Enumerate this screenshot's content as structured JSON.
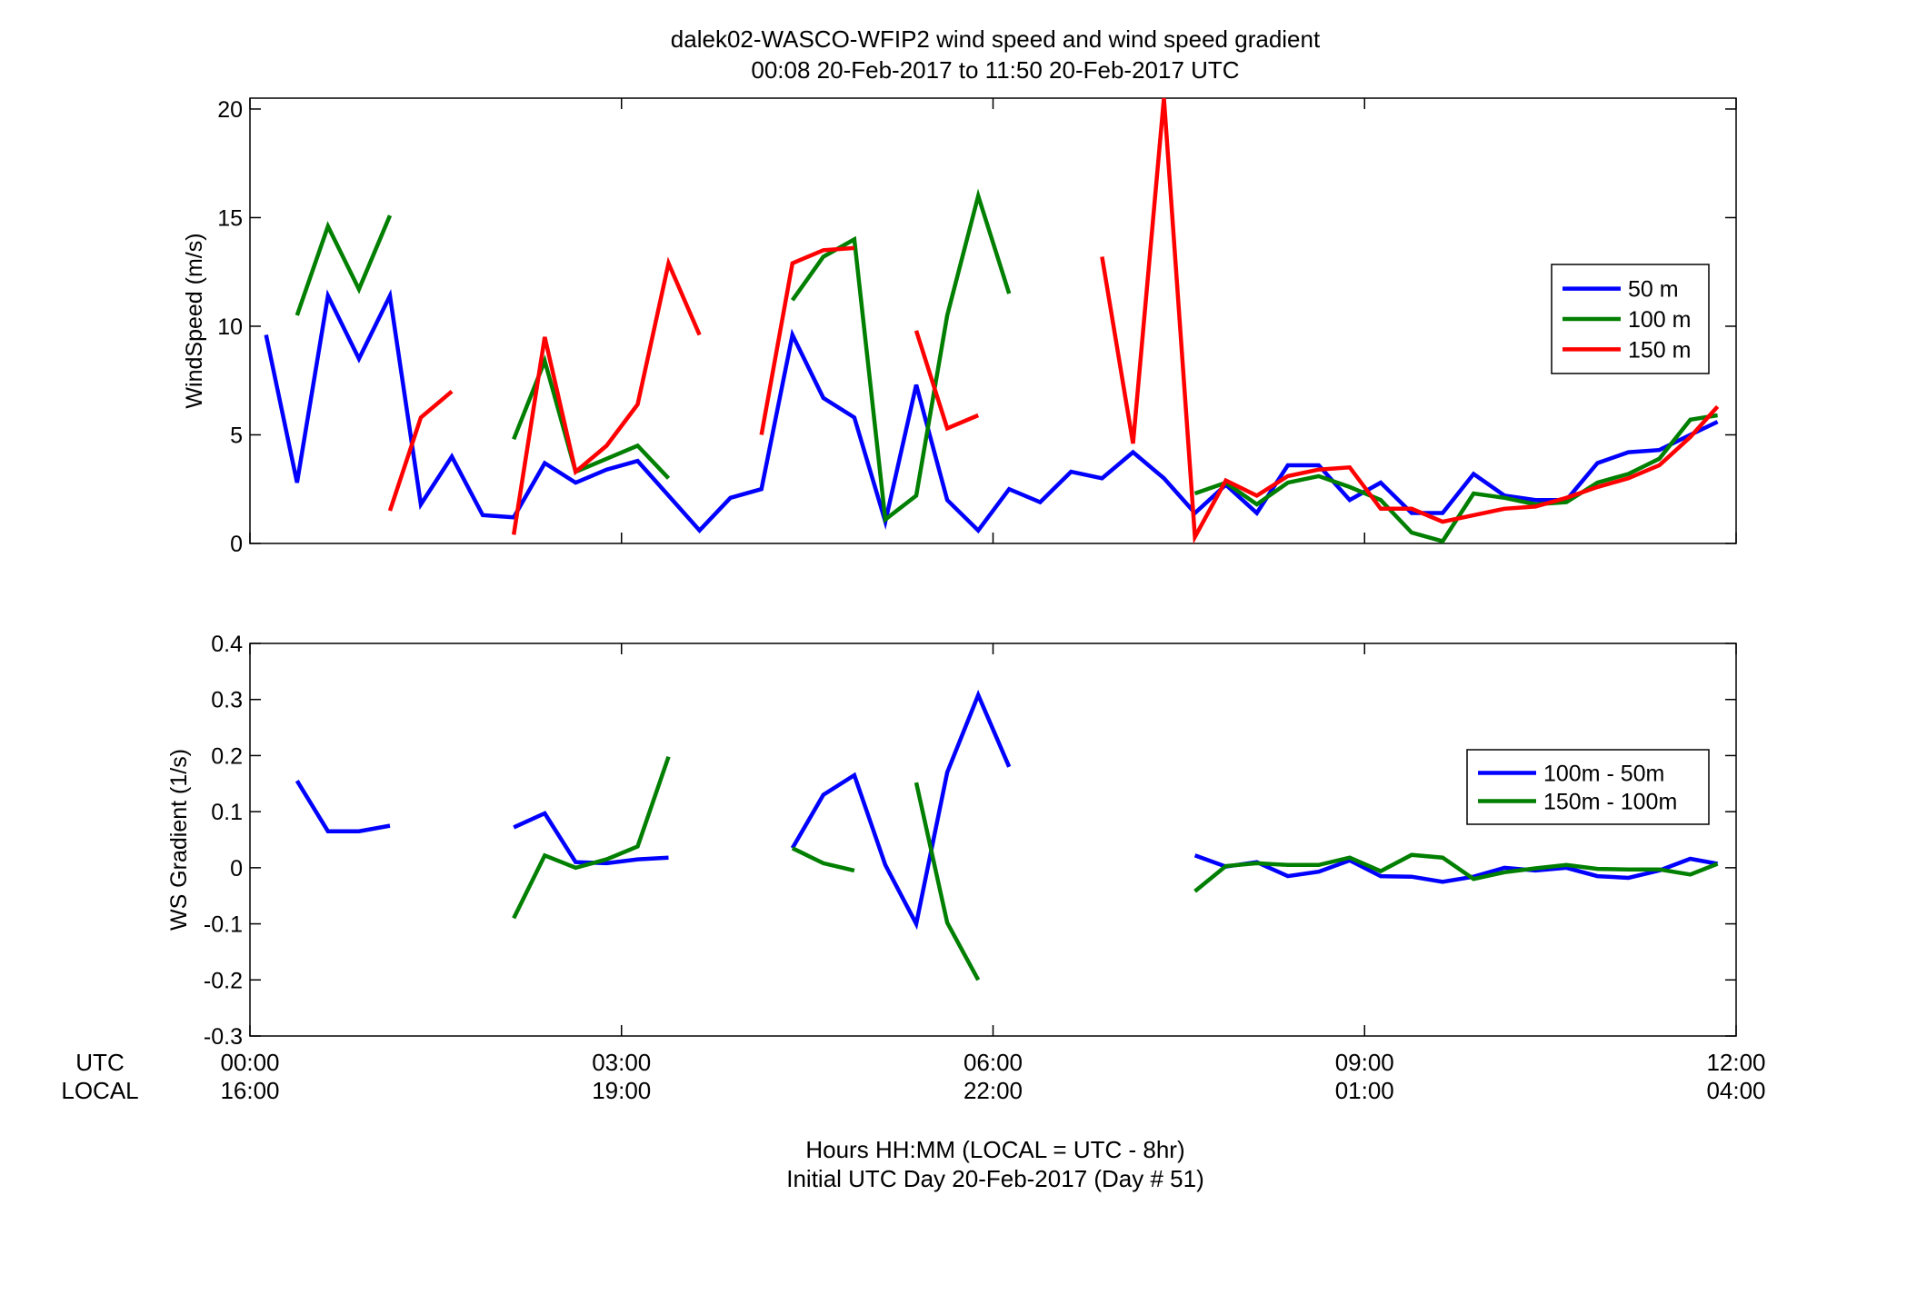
{
  "title": {
    "line1": "dalek02-WASCO-WFIP2  wind speed and wind speed gradient",
    "line2": "00:08 20-Feb-2017 to 11:50 20-Feb-2017  UTC"
  },
  "xaxis": {
    "utc_label": "UTC",
    "local_label": "LOCAL",
    "utc_ticks": [
      "00:00",
      "03:00",
      "06:00",
      "09:00",
      "12:00"
    ],
    "local_ticks": [
      "16:00",
      "19:00",
      "22:00",
      "01:00",
      "04:00"
    ],
    "caption1": "Hours HH:MM  (LOCAL = UTC - 8hr)",
    "caption2": "Initial UTC Day 20-Feb-2017 (Day # 51)"
  },
  "colors": {
    "blue": "#0000ff",
    "green": "#007f00",
    "red": "#ff0000"
  },
  "chart_data": [
    {
      "type": "line",
      "ylabel": "WindSpeed (m/s)",
      "xlabel": "",
      "xlim": [
        0,
        12
      ],
      "ylim": [
        0,
        20.5
      ],
      "yticks": [
        0,
        5,
        10,
        15,
        20
      ],
      "legend_position": "right",
      "series": [
        {
          "name": "50 m",
          "color": "#0000ff",
          "segments": [
            [
              [
                0.13,
                9.6
              ],
              [
                0.38,
                2.8
              ],
              [
                0.63,
                11.4
              ],
              [
                0.88,
                8.5
              ],
              [
                1.13,
                11.4
              ],
              [
                1.38,
                1.8
              ],
              [
                1.63,
                4.0
              ],
              [
                1.88,
                1.3
              ],
              [
                2.13,
                1.2
              ],
              [
                2.38,
                3.7
              ],
              [
                2.63,
                2.8
              ],
              [
                2.88,
                3.4
              ],
              [
                3.13,
                3.8
              ],
              [
                3.38,
                2.2
              ],
              [
                3.63,
                0.6
              ],
              [
                3.88,
                2.1
              ],
              [
                4.13,
                2.5
              ],
              [
                4.38,
                9.6
              ],
              [
                4.63,
                6.7
              ],
              [
                4.88,
                5.8
              ],
              [
                5.13,
                1.0
              ],
              [
                5.38,
                7.3
              ],
              [
                5.63,
                2.0
              ],
              [
                5.88,
                0.6
              ],
              [
                6.13,
                2.5
              ],
              [
                6.38,
                1.9
              ],
              [
                6.63,
                3.3
              ],
              [
                6.88,
                3.0
              ],
              [
                7.13,
                4.2
              ],
              [
                7.38,
                3.0
              ],
              [
                7.63,
                1.4
              ],
              [
                7.88,
                2.7
              ],
              [
                8.13,
                1.4
              ],
              [
                8.38,
                3.6
              ],
              [
                8.63,
                3.6
              ],
              [
                8.88,
                2.0
              ],
              [
                9.13,
                2.8
              ],
              [
                9.38,
                1.4
              ],
              [
                9.63,
                1.4
              ],
              [
                9.88,
                3.2
              ],
              [
                10.13,
                2.2
              ],
              [
                10.38,
                2.0
              ],
              [
                10.63,
                2.0
              ],
              [
                10.88,
                3.7
              ],
              [
                11.13,
                4.2
              ],
              [
                11.38,
                4.3
              ],
              [
                11.63,
                5.0
              ],
              [
                11.85,
                5.6
              ]
            ]
          ]
        },
        {
          "name": "100 m",
          "color": "#007f00",
          "segments": [
            [
              [
                0.38,
                10.5
              ],
              [
                0.63,
                14.6
              ],
              [
                0.88,
                11.7
              ],
              [
                1.13,
                15.1
              ]
            ],
            [
              [
                2.13,
                4.8
              ],
              [
                2.38,
                8.4
              ],
              [
                2.63,
                3.3
              ],
              [
                2.88,
                3.9
              ],
              [
                3.13,
                4.5
              ],
              [
                3.38,
                3.0
              ]
            ],
            [
              [
                4.38,
                11.2
              ],
              [
                4.63,
                13.2
              ],
              [
                4.88,
                14.0
              ],
              [
                5.13,
                1.1
              ],
              [
                5.38,
                2.2
              ],
              [
                5.63,
                10.5
              ],
              [
                5.88,
                16.0
              ],
              [
                6.13,
                11.5
              ]
            ],
            [
              [
                7.63,
                2.3
              ],
              [
                7.88,
                2.8
              ],
              [
                8.13,
                1.8
              ],
              [
                8.38,
                2.8
              ],
              [
                8.63,
                3.1
              ],
              [
                8.88,
                2.6
              ],
              [
                9.13,
                2.0
              ],
              [
                9.38,
                0.5
              ],
              [
                9.63,
                0.1
              ],
              [
                9.88,
                2.3
              ],
              [
                10.13,
                2.1
              ],
              [
                10.38,
                1.8
              ],
              [
                10.63,
                1.9
              ],
              [
                10.88,
                2.8
              ],
              [
                11.13,
                3.2
              ],
              [
                11.38,
                3.9
              ],
              [
                11.63,
                5.7
              ],
              [
                11.85,
                5.9
              ]
            ]
          ]
        },
        {
          "name": "150 m",
          "color": "#ff0000",
          "segments": [
            [
              [
                1.13,
                1.5
              ],
              [
                1.38,
                5.8
              ],
              [
                1.63,
                7.0
              ]
            ],
            [
              [
                2.13,
                0.4
              ],
              [
                2.38,
                9.5
              ],
              [
                2.63,
                3.3
              ],
              [
                2.88,
                4.5
              ],
              [
                3.13,
                6.4
              ],
              [
                3.38,
                12.9
              ],
              [
                3.63,
                9.6
              ]
            ],
            [
              [
                4.13,
                5.0
              ],
              [
                4.38,
                12.9
              ],
              [
                4.63,
                13.5
              ],
              [
                4.88,
                13.6
              ]
            ],
            [
              [
                5.38,
                9.8
              ],
              [
                5.63,
                5.3
              ],
              [
                5.88,
                5.9
              ]
            ],
            [
              [
                6.88,
                13.2
              ],
              [
                7.13,
                4.6
              ],
              [
                7.38,
                20.5
              ],
              [
                7.63,
                0.3
              ],
              [
                7.88,
                2.9
              ],
              [
                8.13,
                2.2
              ],
              [
                8.38,
                3.1
              ],
              [
                8.63,
                3.4
              ],
              [
                8.88,
                3.5
              ],
              [
                9.13,
                1.6
              ],
              [
                9.38,
                1.6
              ],
              [
                9.63,
                1.0
              ],
              [
                9.88,
                1.3
              ],
              [
                10.13,
                1.6
              ],
              [
                10.38,
                1.7
              ],
              [
                10.63,
                2.1
              ],
              [
                10.88,
                2.6
              ],
              [
                11.13,
                3.0
              ],
              [
                11.38,
                3.6
              ],
              [
                11.63,
                4.9
              ],
              [
                11.85,
                6.3
              ]
            ]
          ]
        }
      ]
    },
    {
      "type": "line",
      "ylabel": "WS Gradient (1/s)",
      "xlabel": "",
      "xlim": [
        0,
        12
      ],
      "ylim": [
        -0.3,
        0.4
      ],
      "yticks": [
        -0.3,
        -0.2,
        -0.1,
        0,
        0.1,
        0.2,
        0.3,
        0.4
      ],
      "legend_position": "right",
      "series": [
        {
          "name": "100m - 50m",
          "color": "#0000ff",
          "segments": [
            [
              [
                0.38,
                0.155
              ],
              [
                0.63,
                0.065
              ],
              [
                0.88,
                0.065
              ],
              [
                1.13,
                0.075
              ]
            ],
            [
              [
                2.13,
                0.072
              ],
              [
                2.38,
                0.097
              ],
              [
                2.63,
                0.01
              ],
              [
                2.88,
                0.008
              ],
              [
                3.13,
                0.015
              ],
              [
                3.38,
                0.018
              ]
            ],
            [
              [
                4.38,
                0.035
              ],
              [
                4.63,
                0.13
              ],
              [
                4.88,
                0.165
              ],
              [
                5.13,
                0.005
              ],
              [
                5.38,
                -0.1
              ],
              [
                5.63,
                0.17
              ],
              [
                5.88,
                0.308
              ],
              [
                6.13,
                0.18
              ]
            ],
            [
              [
                7.63,
                0.022
              ],
              [
                7.88,
                0.002
              ],
              [
                8.13,
                0.01
              ],
              [
                8.38,
                -0.015
              ],
              [
                8.63,
                -0.007
              ],
              [
                8.88,
                0.013
              ],
              [
                9.13,
                -0.015
              ],
              [
                9.38,
                -0.016
              ],
              [
                9.63,
                -0.025
              ],
              [
                9.88,
                -0.016
              ],
              [
                10.13,
                0.0
              ],
              [
                10.38,
                -0.005
              ],
              [
                10.63,
                0.0
              ],
              [
                10.88,
                -0.015
              ],
              [
                11.13,
                -0.018
              ],
              [
                11.38,
                -0.005
              ],
              [
                11.63,
                0.016
              ],
              [
                11.85,
                0.007
              ]
            ]
          ]
        },
        {
          "name": "150m - 100m",
          "color": "#007f00",
          "segments": [
            [
              [
                2.13,
                -0.09
              ],
              [
                2.38,
                0.022
              ],
              [
                2.63,
                0.0
              ],
              [
                2.88,
                0.015
              ],
              [
                3.13,
                0.038
              ],
              [
                3.38,
                0.198
              ]
            ],
            [
              [
                4.38,
                0.035
              ],
              [
                4.63,
                0.008
              ],
              [
                4.88,
                -0.005
              ]
            ],
            [
              [
                5.38,
                0.152
              ],
              [
                5.63,
                -0.098
              ],
              [
                5.88,
                -0.2
              ]
            ],
            [
              [
                7.63,
                -0.042
              ],
              [
                7.88,
                0.003
              ],
              [
                8.13,
                0.008
              ],
              [
                8.38,
                0.005
              ],
              [
                8.63,
                0.005
              ],
              [
                8.88,
                0.018
              ],
              [
                9.13,
                -0.006
              ],
              [
                9.38,
                0.023
              ],
              [
                9.63,
                0.018
              ],
              [
                9.88,
                -0.02
              ],
              [
                10.13,
                -0.008
              ],
              [
                10.38,
                -0.001
              ],
              [
                10.63,
                0.005
              ],
              [
                10.88,
                -0.002
              ],
              [
                11.13,
                -0.003
              ],
              [
                11.38,
                -0.003
              ],
              [
                11.63,
                -0.012
              ],
              [
                11.85,
                0.007
              ]
            ]
          ]
        }
      ]
    }
  ]
}
